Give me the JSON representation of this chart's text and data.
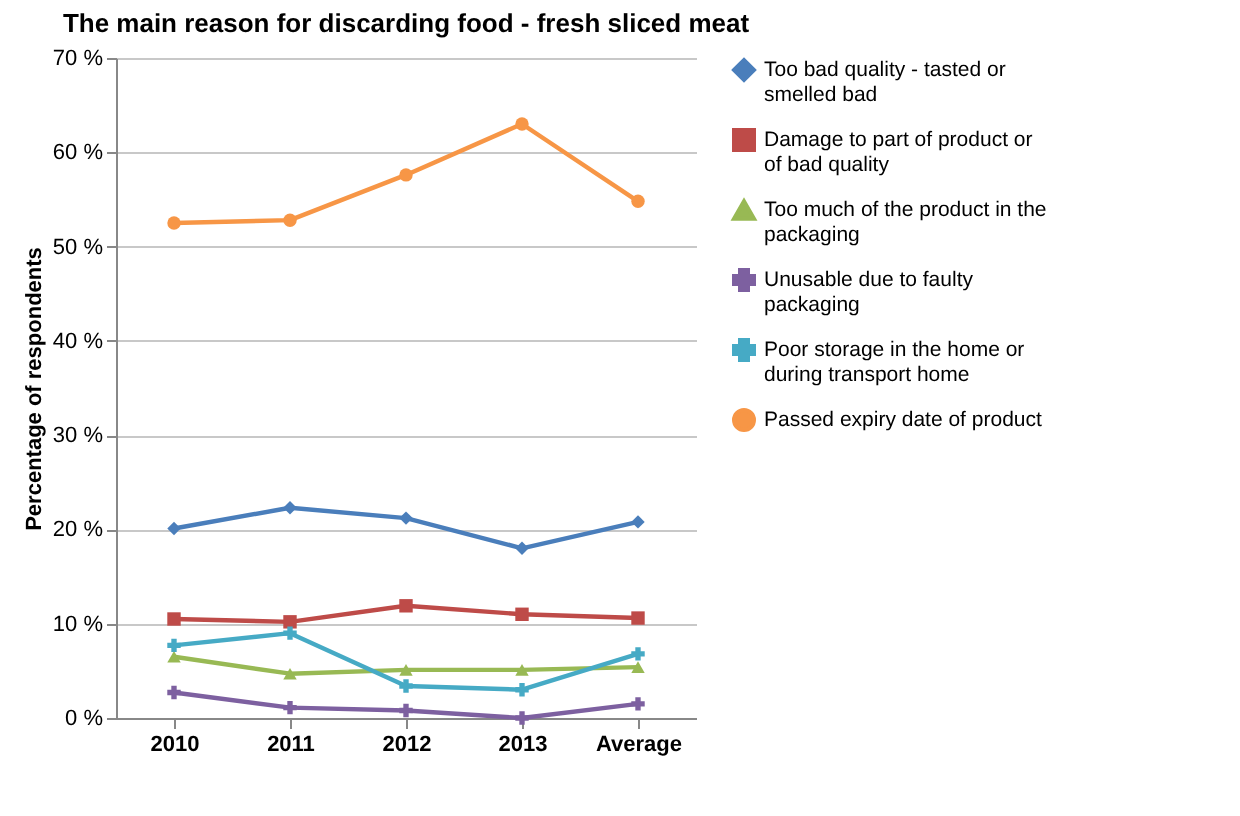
{
  "chart_data": {
    "type": "line",
    "title": "The main reason for discarding food - fresh sliced meat",
    "ylabel": "Percentage of respondents",
    "categories": [
      "2010",
      "2011",
      "2012",
      "2013",
      "Average"
    ],
    "series": [
      {
        "name": "Too bad quality - tasted or smelled bad",
        "color": "#4a7ebb",
        "marker": "diamond",
        "values": [
          20.1,
          22.3,
          21.2,
          18,
          20.8
        ]
      },
      {
        "name": "Damage  to part of product or of bad quality",
        "color": "#be4b48",
        "marker": "square",
        "values": [
          10.5,
          10.2,
          11.9,
          11,
          10.6
        ]
      },
      {
        "name": "Too much of the product in the packaging",
        "color": "#98b954",
        "marker": "triangle",
        "values": [
          6.5,
          4.7,
          5.1,
          5.1,
          5.4
        ]
      },
      {
        "name": "Unusable due to faulty packaging",
        "color": "#7d60a0",
        "marker": "cross",
        "values": [
          2.7,
          1.1,
          0.8,
          0,
          1.5
        ]
      },
      {
        "name": "Poor storage in the home or during transport home",
        "color": "#46aac5",
        "marker": "cross",
        "values": [
          7.7,
          9,
          3.4,
          3,
          6.8
        ]
      },
      {
        "name": "Passed expiry date of product",
        "color": "#f79646",
        "marker": "circle",
        "values": [
          52.5,
          52.8,
          57.6,
          63,
          54.8
        ]
      }
    ],
    "ylim": [
      0,
      70
    ],
    "yticks": [
      {
        "value": 0,
        "label": "0 %"
      },
      {
        "value": 10,
        "label": "10 %"
      },
      {
        "value": 20,
        "label": "20 %"
      },
      {
        "value": 30,
        "label": "30 %"
      },
      {
        "value": 40,
        "label": "40 %"
      },
      {
        "value": 50,
        "label": "50 %"
      },
      {
        "value": 60,
        "label": "60 %"
      },
      {
        "value": 70,
        "label": "70 %"
      }
    ],
    "grid": "y",
    "legend": "right"
  }
}
